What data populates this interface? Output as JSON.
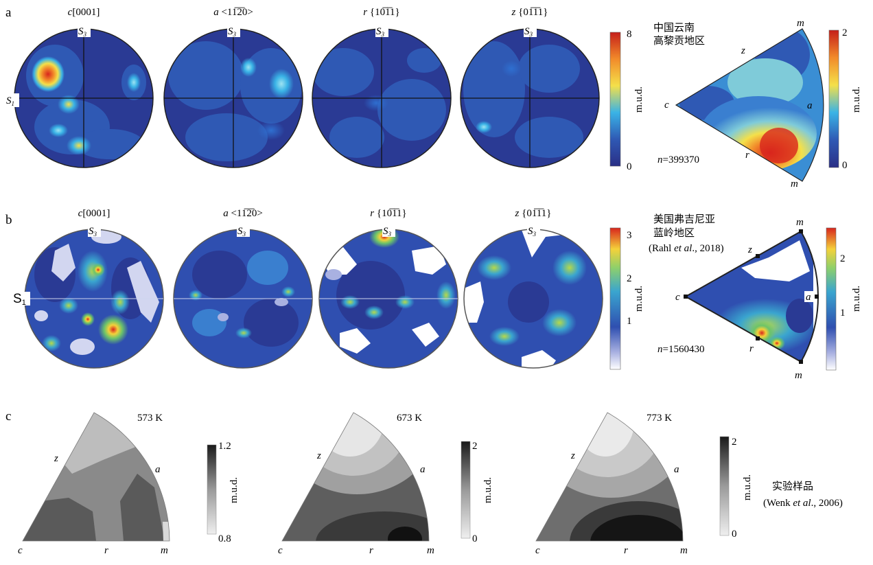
{
  "panels": {
    "a": {
      "label": "a",
      "titles": [
        {
          "letter": "c",
          "index": "[0001]"
        },
        {
          "letter": "a",
          "index": "<11̅2̅0>"
        },
        {
          "letter": "r",
          "index": "{10̅1̅1}"
        },
        {
          "letter": "z",
          "index": "{01̅1̅1}"
        }
      ],
      "s3": "S",
      "s3_sub": "3",
      "s1": "S",
      "s1_sub": "1",
      "colorbar": {
        "max": "8",
        "min": "0",
        "unit": "m.u.d."
      },
      "location": [
        "中国云南",
        "高黎贡地区"
      ],
      "n_label": "n",
      "n_value": "=399370",
      "triangle": {
        "c": "c",
        "z": "z",
        "a": "a",
        "r": "r",
        "m_top": "m",
        "m_bottom": "m"
      },
      "tri_colorbar": {
        "max": "2",
        "min": "0",
        "unit": "m.u.d."
      }
    },
    "b": {
      "label": "b",
      "titles": [
        {
          "letter": "c",
          "index": "[0001]"
        },
        {
          "letter": "a",
          "index": "<11̅2̅0>"
        },
        {
          "letter": "r",
          "index": "{10̅1̅1}"
        },
        {
          "letter": "z",
          "index": "{01̅1̅1}"
        }
      ],
      "s3": "S",
      "s3_sub": "3",
      "s1": "S",
      "s1_sub": "1",
      "colorbar": {
        "ticks": [
          "3",
          "2",
          "1"
        ],
        "unit": "m.u.d."
      },
      "location": [
        "美国弗吉尼亚",
        "蓝岭地区"
      ],
      "citation_pre": "(Rahl ",
      "citation_it": "et al",
      "citation_post": "., 2018)",
      "n_label": "n",
      "n_value": "=1560430",
      "triangle": {
        "c": "c",
        "z": "z",
        "a": "a",
        "r": "r",
        "m_top": "m",
        "m_bottom": "m"
      },
      "tri_colorbar": {
        "ticks": [
          "2",
          "1"
        ],
        "unit": "m.u.d."
      }
    },
    "c": {
      "label": "c",
      "plots": [
        {
          "temp": "573 K",
          "max": "1.2",
          "min": "0.8",
          "unit": "m.u.d."
        },
        {
          "temp": "673 K",
          "max": "2",
          "min": "0",
          "unit": "m.u.d."
        },
        {
          "temp": "773 K",
          "max": "2",
          "min": "0",
          "unit": "m.u.d."
        }
      ],
      "vertex": {
        "c": "c",
        "r": "r",
        "m": "m",
        "z": "z",
        "a": "a"
      },
      "note": "实验样品",
      "note_cite_pre": "(Wenk ",
      "note_cite_it": "et al",
      "note_cite_post": "., 2006)"
    }
  },
  "colors": {
    "navy": "#2a3a94",
    "blue": "#2f59b4",
    "light_blue": "#3ab3e6",
    "yellow": "#f4e04a",
    "red": "#d8261d"
  }
}
